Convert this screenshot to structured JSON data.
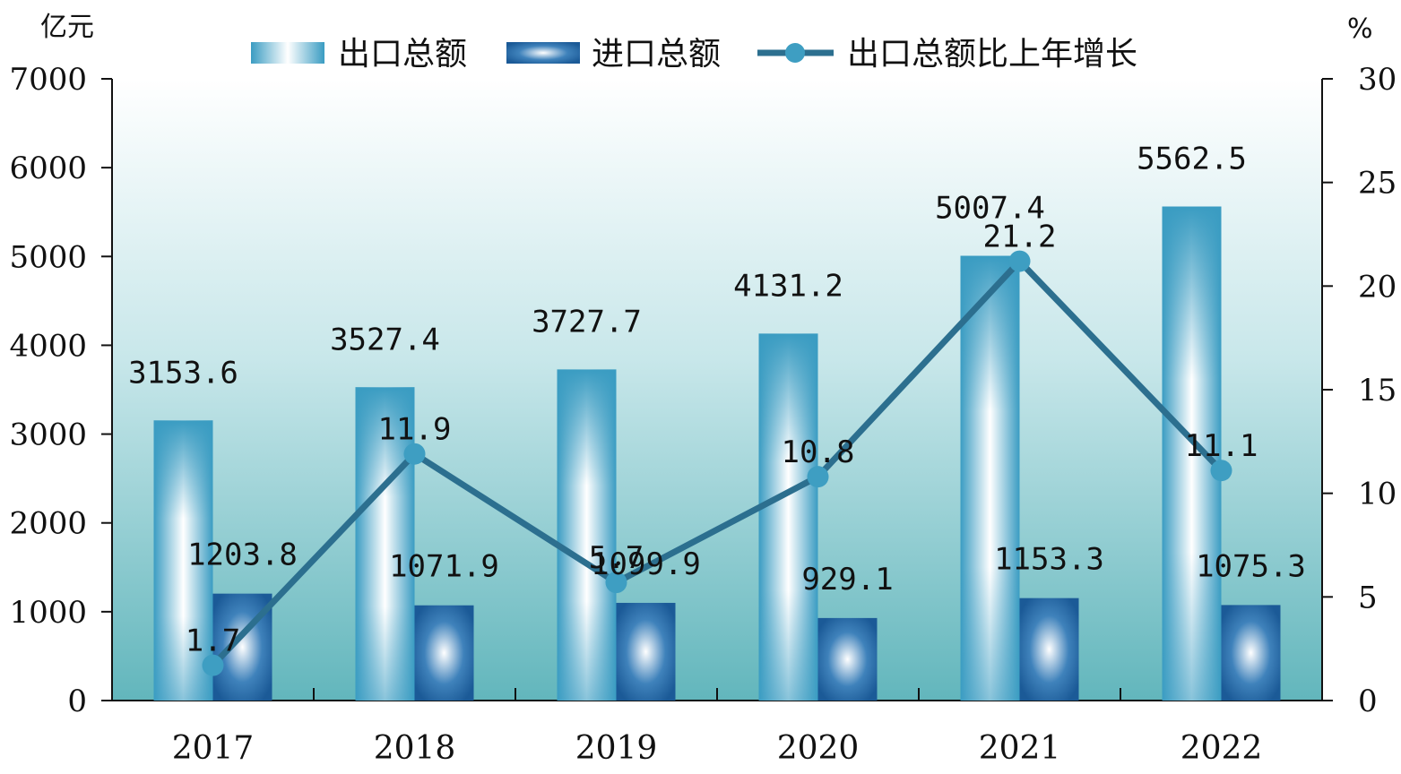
{
  "chart_data": {
    "type": "bar",
    "categories": [
      "2017",
      "2018",
      "2019",
      "2020",
      "2021",
      "2022"
    ],
    "left_unit": "亿元",
    "right_unit": "%",
    "y_left_lim": [
      0,
      7000
    ],
    "y_left_ticks": [
      "0",
      "1000",
      "2000",
      "3000",
      "4000",
      "5000",
      "6000",
      "7000"
    ],
    "y_right_lim": [
      0,
      30
    ],
    "y_right_ticks": [
      "0",
      "5",
      "10",
      "15",
      "20",
      "25",
      "30"
    ],
    "legend_position": "top",
    "series": [
      {
        "name": "出口总额",
        "kind": "bar",
        "axis": "left",
        "values": [
          3153.6,
          3527.4,
          3727.7,
          4131.2,
          5007.4,
          5562.5
        ],
        "labels": [
          "3153.6",
          "3527.4",
          "3727.7",
          "4131.2",
          "5007.4",
          "5562.5"
        ],
        "color": "#3a9cc2"
      },
      {
        "name": "进口总额",
        "kind": "bar",
        "axis": "left",
        "values": [
          1203.8,
          1071.9,
          1099.9,
          929.1,
          1153.3,
          1075.3
        ],
        "labels": [
          "1203.8",
          "1071.9",
          "1099.9",
          "929.1",
          "1153.3",
          "1075.3"
        ],
        "color": "#1d5d9a"
      },
      {
        "name": "出口总额比上年增长",
        "kind": "line",
        "axis": "right",
        "values": [
          1.7,
          11.9,
          5.7,
          10.8,
          21.2,
          11.1
        ],
        "labels": [
          "1.7",
          "11.9",
          "5.7",
          "10.8",
          "21.2",
          "11.1"
        ],
        "color": "#2c6f8f",
        "marker_color": "#3e9ec2"
      }
    ],
    "grid": false
  }
}
